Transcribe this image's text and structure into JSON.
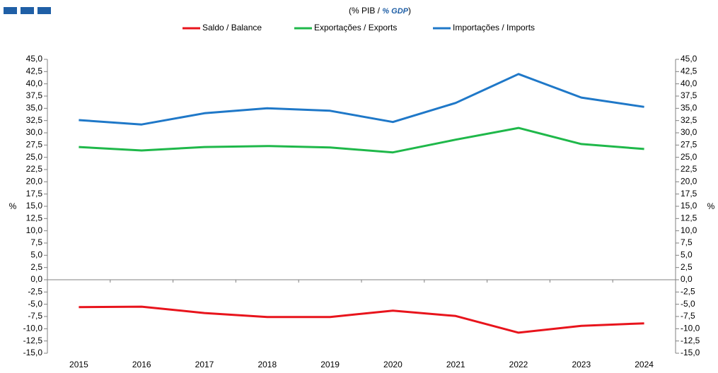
{
  "chart_data": {
    "type": "line",
    "subtitle": [
      "(% PIB / ",
      "% GDP",
      ")"
    ],
    "y_label": "%",
    "categories": [
      "2015",
      "2016",
      "2017",
      "2018",
      "2019",
      "2020",
      "2021",
      "2022",
      "2023",
      "2024"
    ],
    "series": [
      {
        "name": "Saldo / Balance",
        "color": "#e8141c",
        "values": [
          -5.6,
          -5.5,
          -6.8,
          -7.6,
          -7.6,
          -6.3,
          -7.4,
          -10.8,
          -9.4,
          -8.9
        ]
      },
      {
        "name": "Exportações / Exports",
        "color": "#1fb84a",
        "values": [
          27.1,
          26.4,
          27.1,
          27.3,
          27.0,
          26.0,
          28.6,
          31.0,
          27.7,
          26.7
        ]
      },
      {
        "name": "Importações / Imports",
        "color": "#1f78c8",
        "values": [
          32.6,
          31.7,
          34.0,
          35.0,
          34.5,
          32.2,
          36.1,
          42.0,
          37.2,
          35.3
        ]
      }
    ],
    "ylim": [
      -15,
      45
    ],
    "yticks": [
      {
        "value": 45,
        "label": "45,0"
      },
      {
        "value": 42.5,
        "label": "42,5"
      },
      {
        "value": 40,
        "label": "40,0"
      },
      {
        "value": 37.5,
        "label": "37,5"
      },
      {
        "value": 35,
        "label": "35,0"
      },
      {
        "value": 32.5,
        "label": "32,5"
      },
      {
        "value": 30,
        "label": "30,0"
      },
      {
        "value": 27.5,
        "label": "27,5"
      },
      {
        "value": 25,
        "label": "25,0"
      },
      {
        "value": 22.5,
        "label": "22,5"
      },
      {
        "value": 20,
        "label": "20,0"
      },
      {
        "value": 17.5,
        "label": "17,5"
      },
      {
        "value": 15,
        "label": "15,0"
      },
      {
        "value": 12.5,
        "label": "12,5"
      },
      {
        "value": 10,
        "label": "10,0"
      },
      {
        "value": 7.5,
        "label": "7,5"
      },
      {
        "value": 5,
        "label": "5,0"
      },
      {
        "value": 2.5,
        "label": "2,5"
      },
      {
        "value": 0,
        "label": "0,0"
      },
      {
        "value": -2.5,
        "label": "-2,5"
      },
      {
        "value": -5,
        "label": "-5,0"
      },
      {
        "value": -7.5,
        "label": "-7,5"
      },
      {
        "value": -10,
        "label": "-10,0"
      },
      {
        "value": -12.5,
        "label": "-12,5"
      },
      {
        "value": -15,
        "label": "-15,0"
      }
    ],
    "grid": false,
    "legend": "top"
  }
}
